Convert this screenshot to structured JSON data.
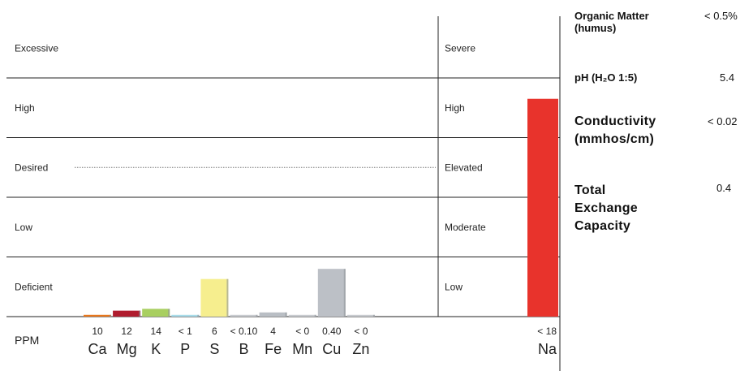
{
  "chart_data": {
    "type": "bar",
    "nutrient_levels": [
      "Excessive",
      "High",
      "Desired",
      "Low",
      "Deficient"
    ],
    "sodium_levels": [
      "Severe",
      "High",
      "Elevated",
      "Moderate",
      "Low"
    ],
    "row_label": "PPM",
    "categories": [
      "Ca",
      "Mg",
      "K",
      "P",
      "S",
      "B",
      "Fe",
      "Mn",
      "Cu",
      "Zn"
    ],
    "value_labels": [
      "10",
      "12",
      "14",
      "< 1",
      "6",
      "< 0.10",
      "4",
      "< 0",
      "0.40",
      "< 0"
    ],
    "levels": [
      0.03,
      0.1,
      0.13,
      0.03,
      0.63,
      0.03,
      0.07,
      0.03,
      0.8,
      0.03
    ],
    "colors": [
      "#e8771c",
      "#b01c2e",
      "#a8cf60",
      "#a8dcea",
      "#f6ee8e",
      "#c8cbcf",
      "#b9bec4",
      "#c8cbcf",
      "#bcc0c6",
      "#c8cbcf"
    ],
    "sodium": {
      "category": "Na",
      "value_label": "< 18",
      "level": 3.65,
      "color": "#e8332c"
    }
  },
  "properties": [
    {
      "label_lines": [
        "Organic Matter",
        "(humus)"
      ],
      "value": "< 0.5%"
    },
    {
      "label_lines": [
        "pH (H₂O 1:5)"
      ],
      "value": "5.4"
    },
    {
      "label_lines": [
        "Conductivity",
        "(mmhos/cm)"
      ],
      "value": "< 0.02"
    },
    {
      "label_lines": [
        "Total",
        "Exchange",
        "Capacity"
      ],
      "value": "0.4"
    }
  ]
}
